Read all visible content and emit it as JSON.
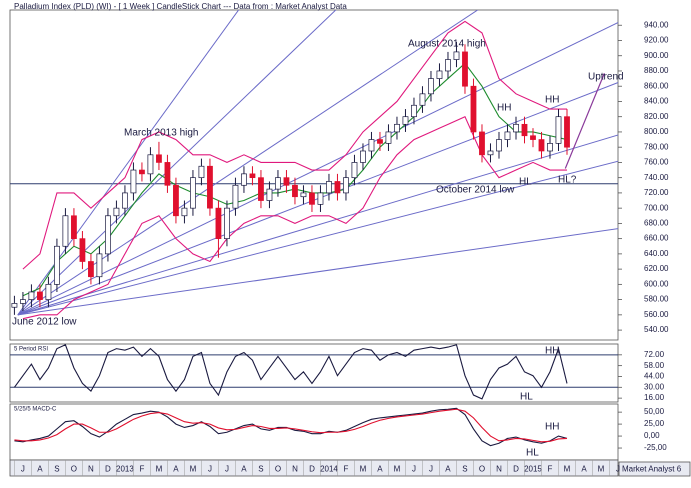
{
  "chart_data": [
    {
      "type": "candlestick",
      "title": "Palladium Index (PLD) (WI) -  [ 1 Week ] CandleStick Chart --- Data from : Market Analyst Data",
      "x": [
        -0.5,
        0,
        0.5,
        1,
        1.5,
        2,
        2.5,
        3,
        3.5,
        4,
        4.5,
        5,
        5.5,
        6,
        6.5,
        7,
        7.5,
        8,
        8.5,
        9,
        9.5,
        10,
        10.5,
        11,
        11.5,
        12,
        12.5,
        13,
        13.5,
        14,
        14.5,
        15,
        15.5,
        16,
        16.5,
        17,
        17.5,
        18,
        18.5,
        19,
        19.5,
        20,
        20.5,
        21,
        21.5,
        22,
        22.5,
        23,
        23.5,
        24,
        24.5,
        25,
        25.5,
        26,
        26.5,
        27,
        27.5,
        28,
        28.5,
        29,
        29.5,
        30,
        30.5,
        31,
        31.5,
        32
      ],
      "open": [
        570,
        575,
        580,
        590,
        580,
        600,
        650,
        690,
        660,
        630,
        610,
        640,
        690,
        700,
        720,
        750,
        745,
        770,
        760,
        730,
        690,
        700,
        740,
        755,
        700,
        660,
        700,
        730,
        745,
        740,
        710,
        725,
        740,
        730,
        715,
        720,
        705,
        720,
        735,
        720,
        740,
        760,
        775,
        790,
        785,
        800,
        810,
        820,
        835,
        850,
        870,
        880,
        895,
        905,
        860,
        800,
        770,
        775,
        790,
        800,
        810,
        795,
        790,
        775,
        785,
        820
      ],
      "high": [
        585,
        590,
        600,
        600,
        610,
        660,
        700,
        700,
        670,
        640,
        650,
        700,
        710,
        730,
        760,
        760,
        780,
        787,
        770,
        740,
        710,
        750,
        765,
        765,
        710,
        710,
        740,
        755,
        755,
        750,
        735,
        750,
        750,
        740,
        730,
        730,
        730,
        745,
        745,
        750,
        770,
        785,
        800,
        800,
        810,
        820,
        830,
        845,
        860,
        880,
        890,
        905,
        918,
        915,
        870,
        810,
        785,
        800,
        810,
        820,
        820,
        805,
        800,
        795,
        830,
        830
      ],
      "low": [
        560,
        565,
        570,
        570,
        570,
        590,
        640,
        650,
        620,
        600,
        600,
        630,
        680,
        690,
        710,
        735,
        735,
        750,
        720,
        680,
        680,
        690,
        730,
        690,
        635,
        650,
        690,
        720,
        730,
        700,
        700,
        715,
        720,
        705,
        705,
        695,
        695,
        710,
        710,
        710,
        730,
        750,
        765,
        775,
        775,
        790,
        800,
        810,
        825,
        840,
        860,
        870,
        885,
        850,
        790,
        760,
        760,
        765,
        780,
        790,
        785,
        780,
        765,
        765,
        775,
        770
      ],
      "close": [
        575,
        580,
        590,
        580,
        600,
        650,
        690,
        660,
        630,
        610,
        640,
        690,
        700,
        720,
        750,
        745,
        770,
        760,
        730,
        690,
        700,
        740,
        755,
        700,
        660,
        700,
        730,
        745,
        740,
        710,
        725,
        740,
        730,
        715,
        720,
        705,
        720,
        735,
        720,
        740,
        760,
        775,
        790,
        785,
        800,
        810,
        820,
        835,
        850,
        870,
        880,
        895,
        905,
        860,
        800,
        770,
        775,
        790,
        800,
        810,
        795,
        790,
        775,
        785,
        820,
        780
      ],
      "up_color": "#ffffff",
      "down_color": "#e0102e",
      "overlay_x": [
        0,
        1,
        2,
        3,
        4,
        5,
        6,
        7,
        8,
        9,
        10,
        11,
        12,
        13,
        14,
        15,
        16,
        17,
        18,
        19,
        20,
        21,
        22,
        23,
        24,
        25,
        26,
        27,
        28,
        29,
        30,
        31,
        32
      ],
      "overlays": [
        {
          "color": "#1e8c2e",
          "values": [
            585,
            595,
            630,
            650,
            640,
            660,
            690,
            720,
            745,
            730,
            720,
            715,
            705,
            710,
            720,
            720,
            725,
            720,
            720,
            725,
            750,
            780,
            800,
            820,
            850,
            870,
            890,
            860,
            820,
            800,
            800,
            795,
            790
          ]
        },
        {
          "color": "#e0197d",
          "values": [
            620,
            640,
            720,
            720,
            700,
            720,
            740,
            790,
            800,
            790,
            770,
            770,
            760,
            770,
            760,
            760,
            760,
            750,
            750,
            770,
            800,
            820,
            840,
            870,
            900,
            930,
            945,
            930,
            870,
            850,
            840,
            830,
            830
          ]
        },
        {
          "color": "#e0197d",
          "values": [
            555,
            560,
            560,
            580,
            590,
            600,
            640,
            680,
            690,
            660,
            640,
            630,
            660,
            680,
            690,
            690,
            680,
            690,
            690,
            680,
            700,
            740,
            770,
            790,
            800,
            810,
            820,
            770,
            740,
            750,
            760,
            750,
            750
          ]
        }
      ],
      "fan_origin": [
        -0.3,
        560
      ],
      "fan_color": "#6b6bc8",
      "fan_ends": {
        "x": 35.6,
        "values": [
          1666,
          1328,
          1091,
          950,
          870,
          800,
          765,
          675
        ]
      },
      "hline": 732,
      "hline_color": "#2f3d6e",
      "uptrend_line": {
        "color": "#8a3a9a",
        "x": [
          31.9,
          34.2
        ],
        "y": [
          752,
          877
        ]
      },
      "xlim": [
        -0.76,
        35
      ],
      "ylim": [
        527,
        960
      ],
      "yticks": [
        {
          "value": 540,
          "label": "540.00"
        },
        {
          "value": 560,
          "label": "560.00"
        },
        {
          "value": 580,
          "label": "580.00"
        },
        {
          "value": 600,
          "label": "600.00"
        },
        {
          "value": 620,
          "label": "620.00"
        },
        {
          "value": 640,
          "label": "640.00"
        },
        {
          "value": 660,
          "label": "660.00"
        },
        {
          "value": 680,
          "label": "680.00"
        },
        {
          "value": 700,
          "label": "700.00"
        },
        {
          "value": 720,
          "label": "720.00"
        },
        {
          "value": 740,
          "label": "740.00"
        },
        {
          "value": 760,
          "label": "760.00"
        },
        {
          "value": 780,
          "label": "780.00"
        },
        {
          "value": 800,
          "label": "800.00"
        },
        {
          "value": 820,
          "label": "820.00"
        },
        {
          "value": 840,
          "label": "840.00"
        },
        {
          "value": 860,
          "label": "860.00"
        },
        {
          "value": 880,
          "label": "880.00"
        },
        {
          "value": 900,
          "label": "900.00"
        },
        {
          "value": 920,
          "label": "920.00"
        },
        {
          "value": 940,
          "label": "940.00"
        }
      ],
      "annotations": [
        "August 2014 high",
        "March 2013 high",
        "June 2012 low",
        "October 2014 low",
        "HH",
        "HH",
        "HL",
        "HL?",
        "Uptrend"
      ]
    },
    {
      "type": "line",
      "title": "5 Period RSI",
      "x": [
        -0.5,
        0,
        0.5,
        1,
        1.5,
        2,
        2.5,
        3,
        3.5,
        4,
        4.5,
        5,
        5.5,
        6,
        6.5,
        7,
        7.5,
        8,
        8.5,
        9,
        9.5,
        10,
        10.5,
        11,
        11.5,
        12,
        12.5,
        13,
        13.5,
        14,
        14.5,
        15,
        15.5,
        16,
        16.5,
        17,
        17.5,
        18,
        18.5,
        19,
        19.5,
        20,
        20.5,
        21,
        21.5,
        22,
        22.5,
        23,
        23.5,
        24,
        24.5,
        25,
        25.5,
        26,
        26.5,
        27,
        27.5,
        28,
        28.5,
        29,
        29.5,
        30,
        30.5,
        31,
        31.5,
        32
      ],
      "values": [
        30,
        45,
        60,
        40,
        55,
        80,
        85,
        55,
        35,
        25,
        45,
        75,
        80,
        78,
        82,
        70,
        80,
        70,
        40,
        25,
        40,
        70,
        75,
        35,
        20,
        50,
        70,
        75,
        65,
        40,
        55,
        70,
        55,
        40,
        50,
        35,
        50,
        70,
        45,
        60,
        75,
        80,
        78,
        65,
        72,
        75,
        70,
        78,
        80,
        82,
        80,
        82,
        85,
        45,
        20,
        15,
        40,
        55,
        60,
        70,
        50,
        45,
        30,
        50,
        80,
        35
      ],
      "color": "#1a1a40",
      "levels": [
        72,
        30
      ],
      "xlim": [
        -0.76,
        35
      ],
      "ylim": [
        11,
        86
      ],
      "yticks": [
        {
          "value": 72,
          "label": "72.00"
        },
        {
          "value": 58,
          "label": "58.00"
        },
        {
          "value": 44,
          "label": "44.00"
        },
        {
          "value": 30,
          "label": "30.00"
        },
        {
          "value": 16,
          "label": "16.00"
        }
      ],
      "annotations": [
        "HH",
        "HL"
      ]
    },
    {
      "type": "macd",
      "title": "5/25/5 MACD-C",
      "x": [
        -0.5,
        0,
        0.5,
        1,
        1.5,
        2,
        2.5,
        3,
        3.5,
        4,
        4.5,
        5,
        5.5,
        6,
        6.5,
        7,
        7.5,
        8,
        8.5,
        9,
        9.5,
        10,
        10.5,
        11,
        11.5,
        12,
        12.5,
        13,
        13.5,
        14,
        14.5,
        15,
        15.5,
        16,
        16.5,
        17,
        17.5,
        18,
        18.5,
        19,
        19.5,
        20,
        20.5,
        21,
        21.5,
        22,
        22.5,
        23,
        23.5,
        24,
        24.5,
        25,
        25.5,
        26,
        26.5,
        27,
        27.5,
        28,
        28.5,
        29,
        29.5,
        30,
        30.5,
        31,
        31.5,
        32
      ],
      "series": [
        {
          "color": "#1a1a40",
          "values": [
            -10,
            -12,
            -8,
            -5,
            0,
            15,
            30,
            32,
            20,
            5,
            -2,
            10,
            25,
            35,
            45,
            48,
            52,
            50,
            40,
            25,
            18,
            22,
            30,
            20,
            5,
            8,
            15,
            22,
            25,
            15,
            12,
            18,
            18,
            12,
            10,
            5,
            5,
            10,
            8,
            12,
            20,
            28,
            35,
            38,
            40,
            42,
            44,
            46,
            48,
            52,
            55,
            56,
            58,
            45,
            15,
            -10,
            -20,
            -15,
            -5,
            -2,
            -8,
            -12,
            -15,
            -10,
            0,
            -5
          ]
        },
        {
          "color": "#e0102e",
          "values": [
            -8,
            -10,
            -10,
            -8,
            -4,
            3,
            15,
            25,
            25,
            17,
            8,
            8,
            15,
            25,
            35,
            42,
            47,
            49,
            46,
            38,
            30,
            27,
            28,
            25,
            17,
            13,
            14,
            18,
            22,
            20,
            16,
            16,
            17,
            15,
            12,
            9,
            7,
            8,
            8,
            10,
            14,
            20,
            27,
            33,
            37,
            40,
            42,
            44,
            46,
            49,
            52,
            54,
            56,
            52,
            38,
            18,
            0,
            -10,
            -8,
            -5,
            -6,
            -9,
            -12,
            -11,
            -6,
            -5
          ]
        }
      ],
      "xlim": [
        -0.76,
        35
      ],
      "ylim": [
        -50,
        67
      ],
      "yticks": [
        {
          "value": 50,
          "label": "50,00"
        },
        {
          "value": 25,
          "label": "25,00"
        },
        {
          "value": 0,
          "label": "0,00"
        },
        {
          "value": -25,
          "label": "-25,00"
        }
      ],
      "xticks": [
        {
          "value": 0,
          "label": "J"
        },
        {
          "value": 1,
          "label": "A"
        },
        {
          "value": 2,
          "label": "S"
        },
        {
          "value": 3,
          "label": "O"
        },
        {
          "value": 4,
          "label": "N"
        },
        {
          "value": 5,
          "label": "D"
        },
        {
          "value": 6,
          "label": "2013"
        },
        {
          "value": 7,
          "label": "F"
        },
        {
          "value": 8,
          "label": "M"
        },
        {
          "value": 9,
          "label": "A"
        },
        {
          "value": 10,
          "label": "M"
        },
        {
          "value": 11,
          "label": "J"
        },
        {
          "value": 12,
          "label": "J"
        },
        {
          "value": 13,
          "label": "A"
        },
        {
          "value": 14,
          "label": "S"
        },
        {
          "value": 15,
          "label": "O"
        },
        {
          "value": 16,
          "label": "N"
        },
        {
          "value": 17,
          "label": "D"
        },
        {
          "value": 18,
          "label": "2014"
        },
        {
          "value": 19,
          "label": "F"
        },
        {
          "value": 20,
          "label": "M"
        },
        {
          "value": 21,
          "label": "A"
        },
        {
          "value": 22,
          "label": "M"
        },
        {
          "value": 23,
          "label": "J"
        },
        {
          "value": 24,
          "label": "J"
        },
        {
          "value": 25,
          "label": "A"
        },
        {
          "value": 26,
          "label": "S"
        },
        {
          "value": 27,
          "label": "O"
        },
        {
          "value": 28,
          "label": "N"
        },
        {
          "value": 29,
          "label": "D"
        },
        {
          "value": 30,
          "label": "2015"
        },
        {
          "value": 31,
          "label": "F"
        },
        {
          "value": 32,
          "label": "M"
        },
        {
          "value": 33,
          "label": "A"
        },
        {
          "value": 34,
          "label": "M"
        },
        {
          "value": 35,
          "label": "J"
        }
      ],
      "annotations": [
        "HH",
        "HL"
      ]
    }
  ],
  "footer": "Market Analyst 6"
}
